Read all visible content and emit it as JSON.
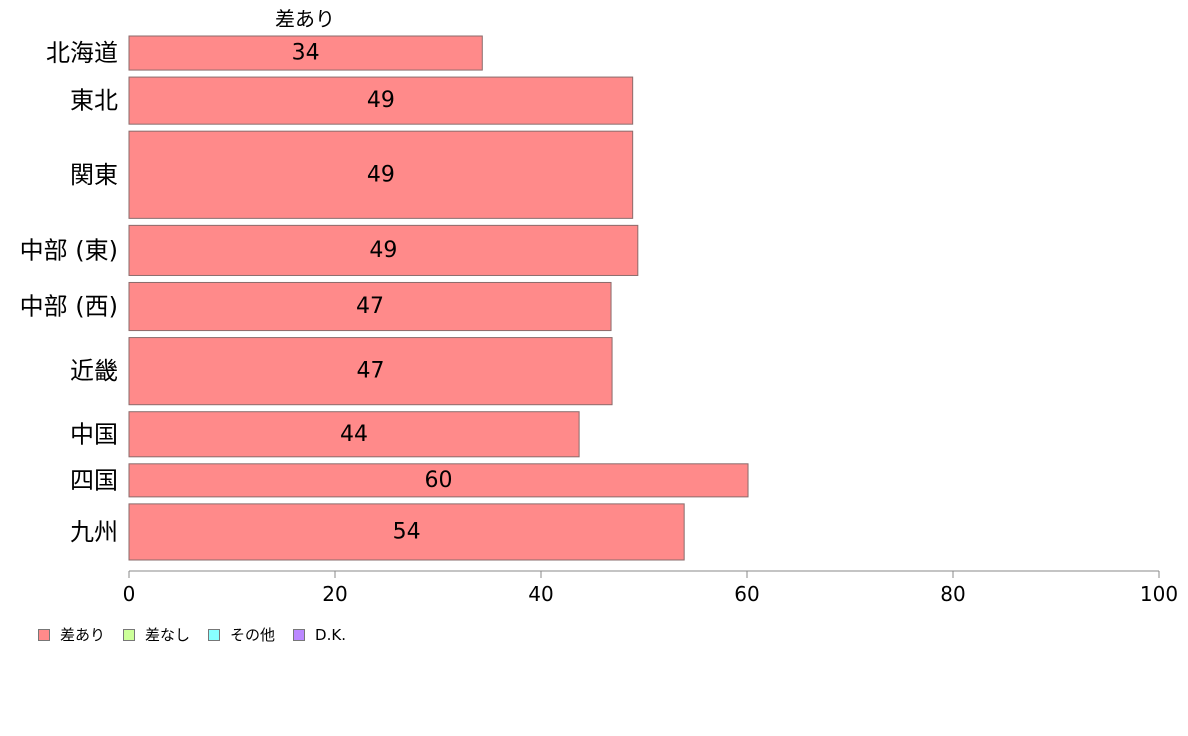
{
  "chart_data": {
    "type": "bar",
    "orientation": "horizontal",
    "series_header": "差あり",
    "categories": [
      "北海道",
      "東北",
      "関東",
      "中部 (東)",
      "中部 (西)",
      "近畿",
      "中国",
      "四国",
      "九州"
    ],
    "series": [
      {
        "name": "差あり",
        "color": "#ff8a8a",
        "values": [
          34.3,
          48.9,
          48.9,
          49.4,
          46.8,
          46.9,
          43.7,
          60.1,
          53.9
        ],
        "labels": [
          "34",
          "49",
          "49",
          "49",
          "47",
          "47",
          "44",
          "60",
          "54"
        ]
      }
    ],
    "bar_weights": [
      34,
      47,
      87,
      50,
      48,
      67,
      45,
      33,
      56
    ],
    "xlim": [
      0,
      100
    ],
    "xticks": [
      "0",
      "20",
      "40",
      "60",
      "80",
      "100"
    ],
    "xlabel": "",
    "ylabel": "",
    "grid": false,
    "legend": {
      "placement": "bottom-left",
      "items": [
        {
          "label": "差あり",
          "color": "#ff8a8a"
        },
        {
          "label": "差なし",
          "color": "#ccff99"
        },
        {
          "label": "その他",
          "color": "#88ffff"
        },
        {
          "label": "D.K.",
          "color": "#bb88ff"
        }
      ]
    }
  }
}
